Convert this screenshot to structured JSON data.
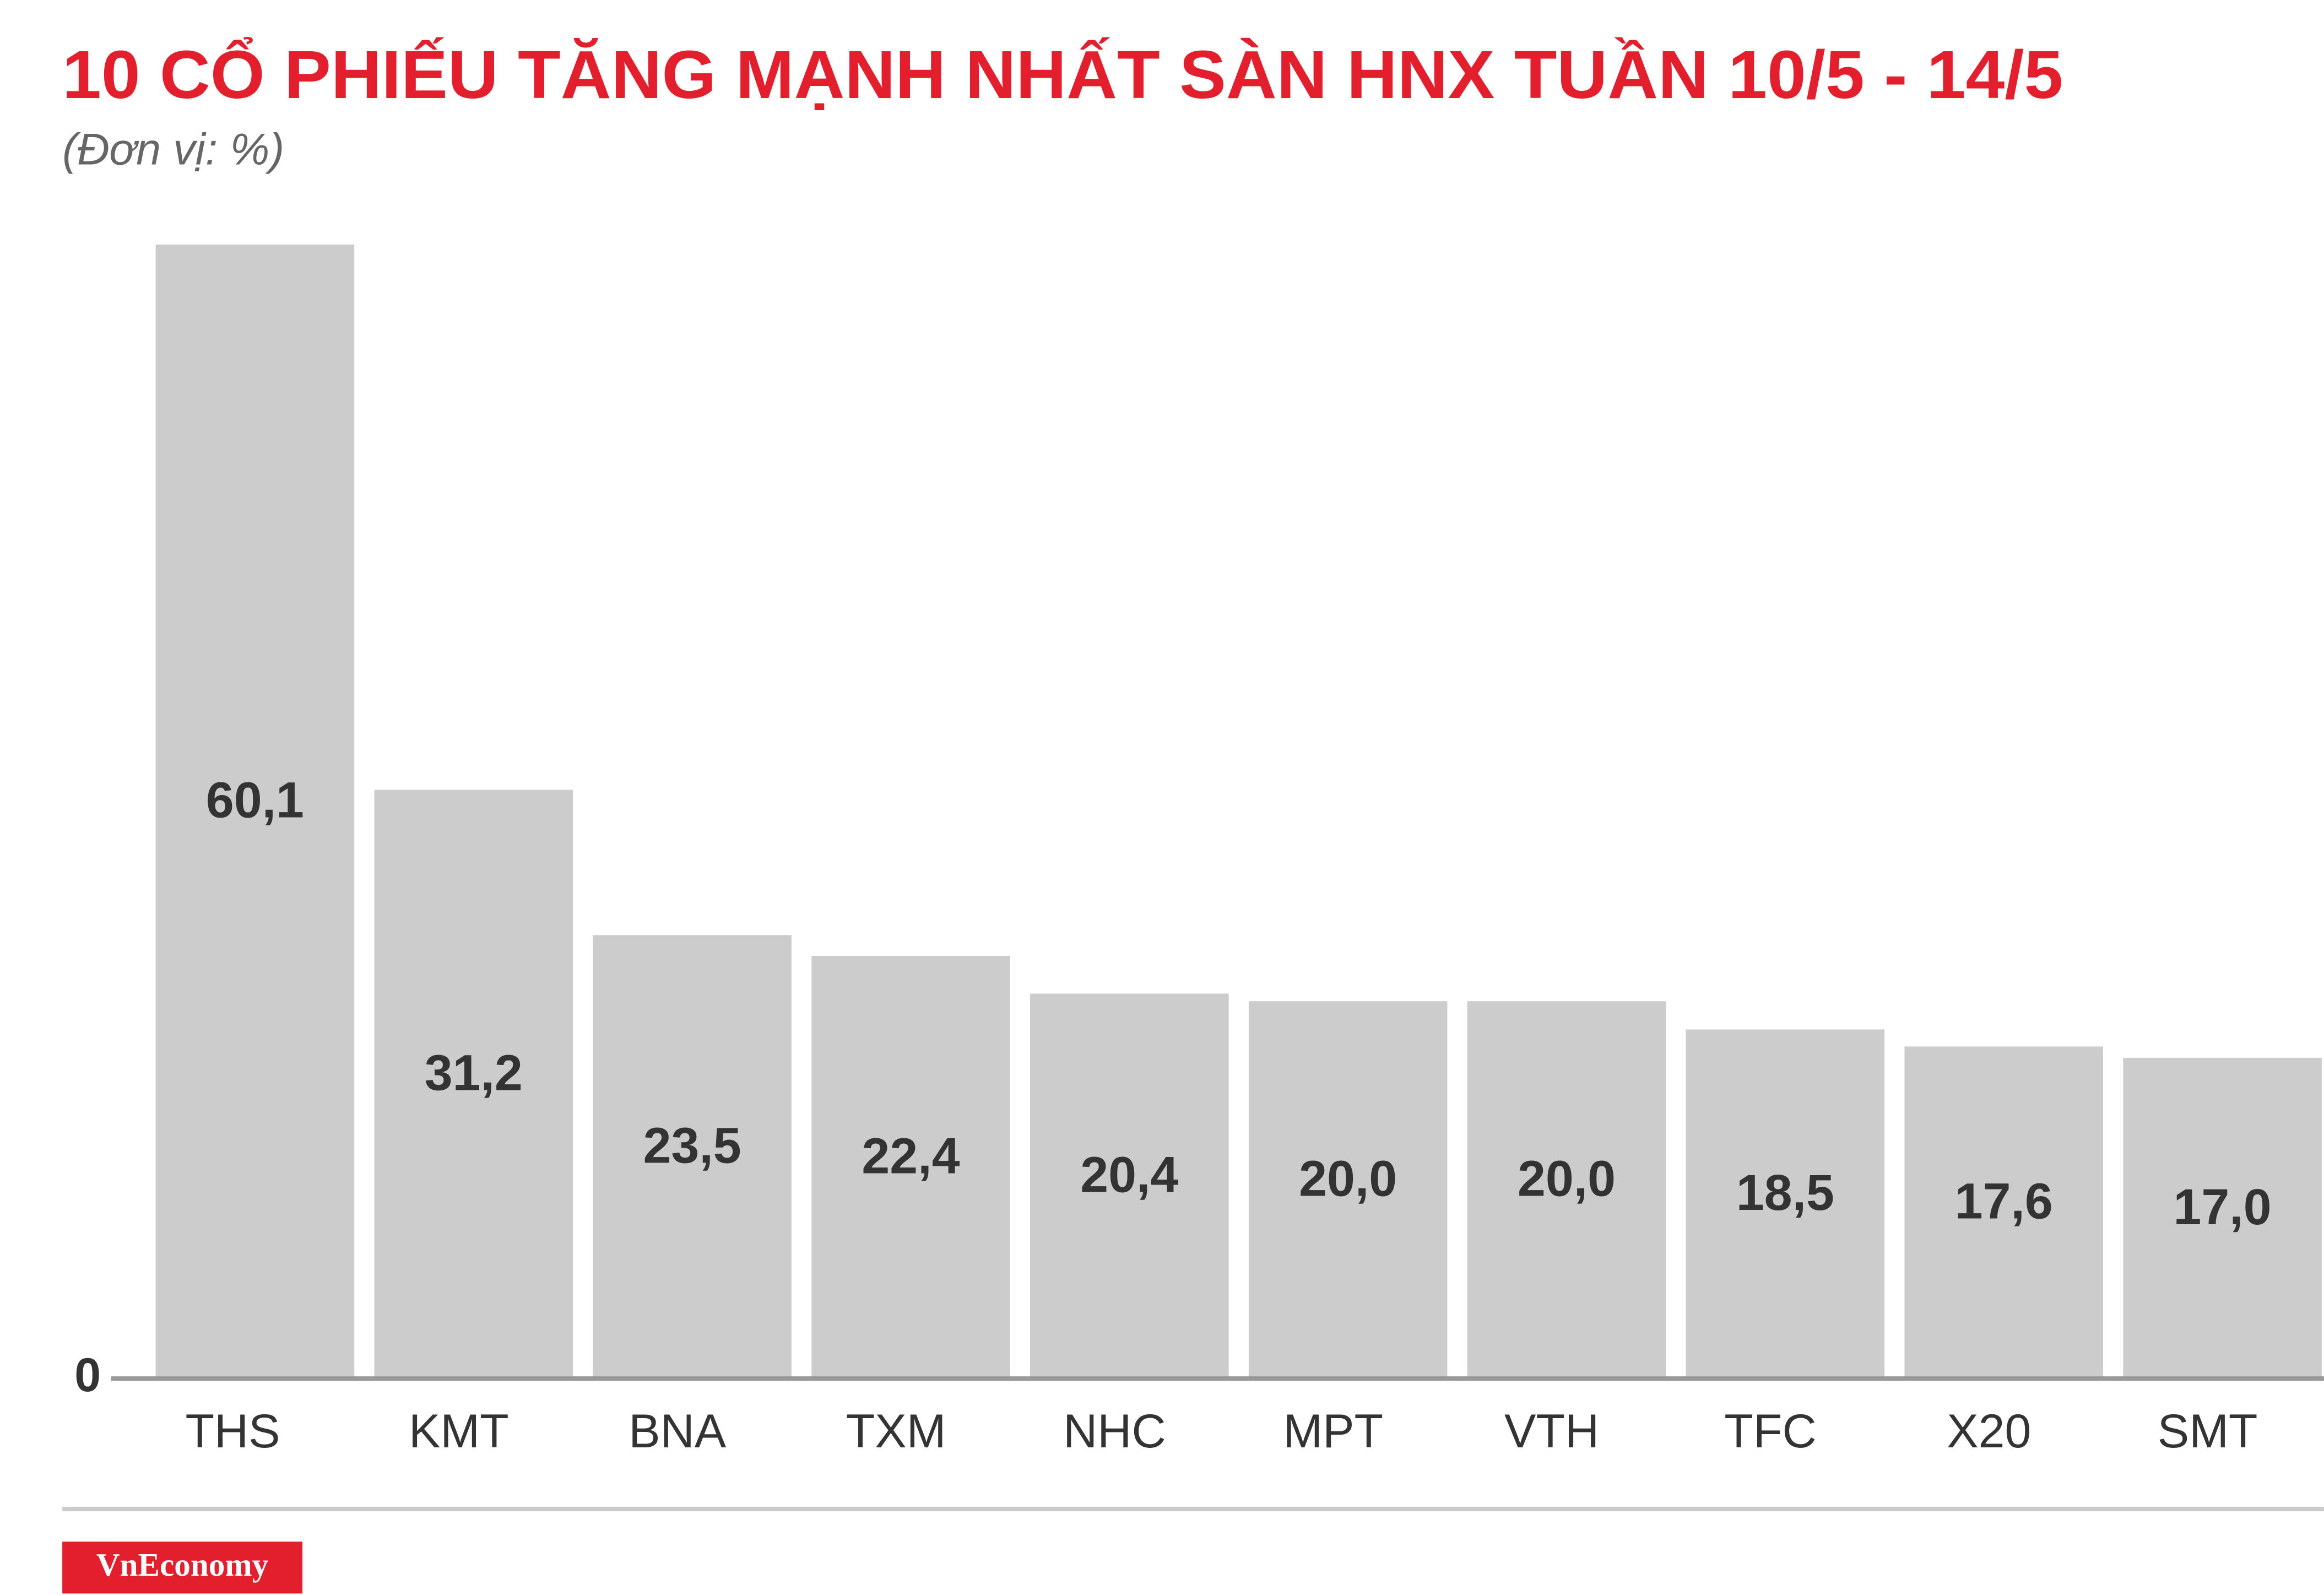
{
  "chart_data": {
    "type": "bar",
    "title": "10 CỔ PHIẾU TĂNG MẠNH NHẤT SÀN HNX TUẦN 10/5 - 14/5",
    "subtitle": "(Đơn vị: %)",
    "categories": [
      "THS",
      "KMT",
      "BNA",
      "TXM",
      "NHC",
      "MPT",
      "VTH",
      "TFC",
      "X20",
      "SMT"
    ],
    "values": [
      60.1,
      31.2,
      23.5,
      22.4,
      20.4,
      20.0,
      20.0,
      18.5,
      17.6,
      17.0
    ],
    "value_labels": [
      "60,1",
      "31,2",
      "23,5",
      "22,4",
      "20,4",
      "20,0",
      "20,0",
      "18,5",
      "17,6",
      "17,0"
    ],
    "color": "#cccccc",
    "ylim": [
      0,
      65
    ],
    "yticks": [
      0
    ],
    "logo": "VnEconomy"
  }
}
